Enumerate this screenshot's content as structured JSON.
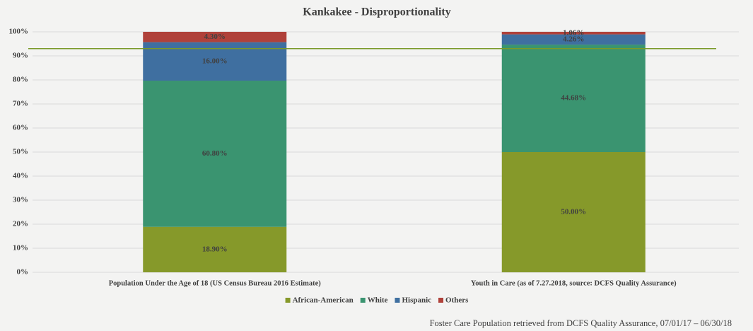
{
  "chart_data": {
    "type": "stacked_bar",
    "title": "Kankakee - Disproportionality",
    "categories": [
      "Population Under the Age of 18 (US Census Bureau 2016 Estimate)",
      "Youth in Care (as of 7.27.2018, source: DCFS Quality Assurance)"
    ],
    "series": [
      {
        "name": "African-American",
        "color": "#86992a",
        "values": [
          18.9,
          50
        ],
        "value_labels": [
          "18.90%",
          "50.00%"
        ]
      },
      {
        "name": "White",
        "color": "#3a9470",
        "values": [
          60.8,
          44.68
        ],
        "value_labels": [
          "60.80%",
          "44.68%"
        ]
      },
      {
        "name": "Hispanic",
        "color": "#3f6fa0",
        "values": [
          16,
          4.26
        ],
        "value_labels": [
          "16.00%",
          "4.26%"
        ]
      },
      {
        "name": "Others",
        "color": "#b0413a",
        "values": [
          4.3,
          1.06
        ],
        "value_labels": [
          "4.30%",
          "1.06%"
        ]
      }
    ],
    "ylim": [
      0,
      100
    ],
    "yticks": [
      {
        "value": 0,
        "label": "0%"
      },
      {
        "value": 10,
        "label": "10%"
      },
      {
        "value": 20,
        "label": "20%"
      },
      {
        "value": 30,
        "label": "30%"
      },
      {
        "value": 40,
        "label": "40%"
      },
      {
        "value": 50,
        "label": "50%"
      },
      {
        "value": 60,
        "label": "60%"
      },
      {
        "value": 70,
        "label": "70%"
      },
      {
        "value": 80,
        "label": "80%"
      },
      {
        "value": 90,
        "label": "90%"
      },
      {
        "value": 100,
        "label": "100%"
      }
    ],
    "grid": true,
    "reference_line": {
      "value": 93,
      "color": "#7a9a2a"
    },
    "legend": "bottom",
    "footnote": "Foster Care Population retrieved from DCFS Quality Assurance, 07/01/17 – 06/30/18"
  }
}
